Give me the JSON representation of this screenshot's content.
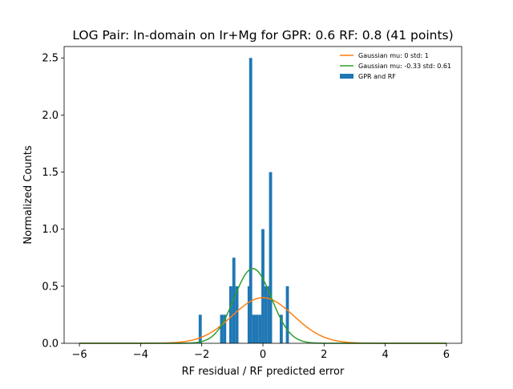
{
  "chart_data": {
    "type": "bar",
    "title": "LOG Pair: In-domain on Ir+Mg for GPR: 0.6 RF: 0.8 (41 points)",
    "xlabel": "RF residual / RF predicted error",
    "ylabel": "Normalized Counts",
    "xlim": [
      -6.5,
      6.5
    ],
    "ylim": [
      0,
      2.6
    ],
    "xticks": [
      -6,
      -4,
      -2,
      0,
      2,
      4,
      6
    ],
    "xtick_labels": [
      "−6",
      "−4",
      "−2",
      "0",
      "2",
      "4",
      "6"
    ],
    "yticks": [
      0.0,
      0.5,
      1.0,
      1.5,
      2.0,
      2.5
    ],
    "ytick_labels": [
      "0.0",
      "0.5",
      "1.0",
      "1.5",
      "2.0",
      "2.5"
    ],
    "grid": false,
    "legend_position": "top-right",
    "histogram": {
      "name": "GPR and RF",
      "color": "#1f77b4",
      "bin_width": 0.1,
      "bins": [
        {
          "x0": -2.1,
          "value": 0.25
        },
        {
          "x0": -1.4,
          "value": 0.25
        },
        {
          "x0": -1.3,
          "value": 0.25
        },
        {
          "x0": -1.1,
          "value": 0.5
        },
        {
          "x0": -1.0,
          "value": 0.75
        },
        {
          "x0": -0.9,
          "value": 0.5
        },
        {
          "x0": -0.5,
          "value": 0.5
        },
        {
          "x0": -0.45,
          "value": 2.5
        },
        {
          "x0": -0.35,
          "value": 0.25
        },
        {
          "x0": -0.25,
          "value": 0.25
        },
        {
          "x0": -0.15,
          "value": 0.25
        },
        {
          "x0": -0.05,
          "value": 1.0
        },
        {
          "x0": 0.05,
          "value": 0.5
        },
        {
          "x0": 0.15,
          "value": 0.5
        },
        {
          "x0": 0.2,
          "value": 1.5
        },
        {
          "x0": 0.55,
          "value": 0.25
        },
        {
          "x0": 0.75,
          "value": 0.5
        }
      ]
    },
    "curves": [
      {
        "name": "Gaussian mu: 0 std: 1",
        "mu": 0,
        "std": 1,
        "color": "#ff7f0e"
      },
      {
        "name": "Gaussian mu: -0.33 std: 0.61",
        "mu": -0.33,
        "std": 0.61,
        "color": "#2ca02c"
      }
    ]
  }
}
